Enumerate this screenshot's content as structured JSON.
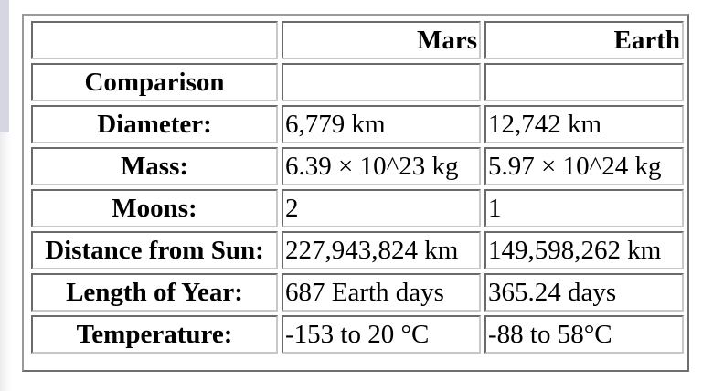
{
  "table": {
    "headers": [
      "",
      "Mars",
      "Earth"
    ],
    "rows": [
      {
        "label": "Comparison",
        "mars": "",
        "earth": ""
      },
      {
        "label": "Diameter:",
        "mars": "6,779 km",
        "earth": "12,742 km"
      },
      {
        "label": "Mass:",
        "mars": "6.39 × 10^23 kg",
        "earth": "5.97 × 10^24 kg"
      },
      {
        "label": "Moons:",
        "mars": "2",
        "earth": "1"
      },
      {
        "label": "Distance from Sun:",
        "mars": "227,943,824 km",
        "earth": "149,598,262 km"
      },
      {
        "label": "Length of Year:",
        "mars": "687 Earth days",
        "earth": "365.24 days"
      },
      {
        "label": "Temperature:",
        "mars": "-153 to 20 °C",
        "earth": "-88 to 58°C"
      }
    ]
  }
}
